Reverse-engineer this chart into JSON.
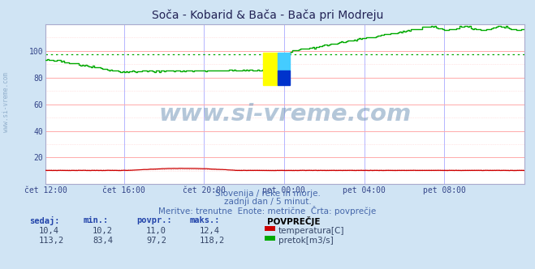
{
  "title": "Soča - Kobarid & Bača - Bača pri Modreju",
  "bg_color": "#d0e4f4",
  "plot_bg_color": "#ffffff",
  "grid_color_v": "#aaaaff",
  "grid_color_h_major": "#ffaaaa",
  "grid_color_h_minor": "#ffcccc",
  "n_points": 288,
  "temp_min": 10.2,
  "temp_max": 12.4,
  "temp_avg": 11.0,
  "temp_current": 10.4,
  "flow_min": 83.4,
  "flow_max": 118.2,
  "flow_avg": 97.2,
  "flow_current": 113.2,
  "temp_color": "#cc0000",
  "flow_color": "#00aa00",
  "xticklabels": [
    "čet 12:00",
    "čet 16:00",
    "čet 20:00",
    "pet 00:00",
    "pet 04:00",
    "pet 08:00"
  ],
  "xtick_positions_frac": [
    0.0,
    0.1667,
    0.3333,
    0.5,
    0.6667,
    0.8333
  ],
  "ylim": [
    0,
    120
  ],
  "yticks": [
    20,
    40,
    60,
    80,
    100
  ],
  "watermark": "www.si-vreme.com",
  "subtitle1": "Slovenija / reke in morje.",
  "subtitle2": "zadnji dan / 5 minut.",
  "subtitle3": "Meritve: trenutne  Enote: metrične  Črta: povprečje",
  "legend_title": "POVPREČJE",
  "legend_temp": "temperatura[C]",
  "legend_flow": "pretok[m3/s]",
  "stat_headers": [
    "sedaj:",
    "min.:",
    "povpr.:",
    "maks.:"
  ],
  "stat_temp": [
    "10,4",
    "10,2",
    "11,0",
    "12,4"
  ],
  "stat_flow": [
    "113,2",
    "83,4",
    "97,2",
    "118,2"
  ],
  "logo_colors": [
    "#ffff00",
    "#00aaff",
    "#0022cc"
  ],
  "left_label": "www.si-vreme.com"
}
